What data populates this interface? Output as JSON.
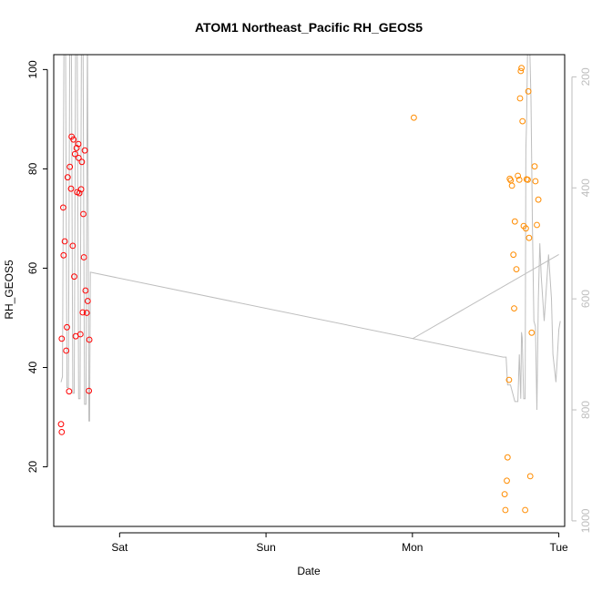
{
  "chart_data": {
    "type": "scatter",
    "title": "ATOM1 Northeast_Pacific RH_GEOS5",
    "xlabel": "Date",
    "ylabel": "RH_GEOS5",
    "x_unit": "days since Fri 00:00",
    "xlim": [
      0.55,
      4.04
    ],
    "ylim": [
      8,
      103
    ],
    "x_ticks": [
      {
        "x": 1,
        "label": "Sat"
      },
      {
        "x": 2,
        "label": "Sun"
      },
      {
        "x": 3,
        "label": "Mon"
      },
      {
        "x": 4,
        "label": "Tue"
      }
    ],
    "y_ticks": [
      20,
      40,
      60,
      80,
      100
    ],
    "right_axis": {
      "label": "",
      "ticks": [
        200,
        400,
        600,
        800,
        1000
      ],
      "lim": [
        1010,
        160
      ],
      "color": "#bebebe"
    },
    "colors": {
      "series1": "#ff0000",
      "series2": "#ff8c00",
      "pressure": "#bebebe",
      "axis": "#000000"
    },
    "series": [
      {
        "color": "#ff0000",
        "points": [
          [
            0.6,
            28.6
          ],
          [
            0.605,
            27.0
          ],
          [
            0.605,
            45.8
          ],
          [
            0.615,
            72.2
          ],
          [
            0.617,
            62.6
          ],
          [
            0.625,
            65.4
          ],
          [
            0.635,
            43.4
          ],
          [
            0.64,
            48.1
          ],
          [
            0.645,
            78.3
          ],
          [
            0.655,
            35.2
          ],
          [
            0.66,
            80.4
          ],
          [
            0.668,
            76.0
          ],
          [
            0.672,
            86.5
          ],
          [
            0.68,
            64.5
          ],
          [
            0.685,
            85.9
          ],
          [
            0.69,
            58.3
          ],
          [
            0.695,
            83.0
          ],
          [
            0.7,
            46.3
          ],
          [
            0.706,
            84.2
          ],
          [
            0.71,
            75.3
          ],
          [
            0.718,
            85.0
          ],
          [
            0.72,
            82.2
          ],
          [
            0.725,
            75.1
          ],
          [
            0.732,
            46.7
          ],
          [
            0.737,
            75.9
          ],
          [
            0.742,
            81.4
          ],
          [
            0.748,
            51.1
          ],
          [
            0.752,
            70.9
          ],
          [
            0.756,
            62.2
          ],
          [
            0.762,
            83.7
          ],
          [
            0.767,
            55.5
          ],
          [
            0.775,
            51.0
          ],
          [
            0.782,
            53.4
          ],
          [
            0.79,
            35.3
          ],
          [
            0.793,
            45.6
          ]
        ]
      },
      {
        "color": "#ff8c00",
        "points": [
          [
            3.01,
            90.3
          ],
          [
            3.63,
            14.5
          ],
          [
            3.635,
            11.3
          ],
          [
            3.645,
            17.2
          ],
          [
            3.65,
            21.9
          ],
          [
            3.66,
            37.5
          ],
          [
            3.665,
            78.0
          ],
          [
            3.672,
            77.7
          ],
          [
            3.68,
            76.6
          ],
          [
            3.69,
            62.7
          ],
          [
            3.695,
            51.9
          ],
          [
            3.7,
            69.4
          ],
          [
            3.71,
            59.8
          ],
          [
            3.72,
            78.6
          ],
          [
            3.73,
            77.8
          ],
          [
            3.735,
            94.2
          ],
          [
            3.74,
            99.7
          ],
          [
            3.745,
            100.3
          ],
          [
            3.752,
            89.6
          ],
          [
            3.76,
            68.5
          ],
          [
            3.77,
            11.3
          ],
          [
            3.775,
            68.0
          ],
          [
            3.78,
            77.9
          ],
          [
            3.788,
            77.8
          ],
          [
            3.792,
            95.6
          ],
          [
            3.797,
            66.1
          ],
          [
            3.805,
            18.1
          ],
          [
            3.815,
            47.0
          ],
          [
            3.835,
            80.5
          ],
          [
            3.84,
            77.5
          ],
          [
            3.85,
            68.7
          ],
          [
            3.86,
            73.8
          ]
        ]
      }
    ],
    "pressure_line": {
      "color": "#bebebe",
      "points": [
        [
          0.6,
          750
        ],
        [
          0.61,
          740
        ],
        [
          0.62,
          100
        ],
        [
          0.63,
          100
        ],
        [
          0.64,
          760
        ],
        [
          0.65,
          760
        ],
        [
          0.66,
          100
        ],
        [
          0.67,
          100
        ],
        [
          0.68,
          770
        ],
        [
          0.69,
          770
        ],
        [
          0.7,
          100
        ],
        [
          0.71,
          100
        ],
        [
          0.72,
          780
        ],
        [
          0.73,
          780
        ],
        [
          0.74,
          100
        ],
        [
          0.75,
          100
        ],
        [
          0.76,
          790
        ],
        [
          0.77,
          790
        ],
        [
          0.78,
          100
        ],
        [
          0.79,
          820
        ],
        [
          0.795,
          820
        ],
        [
          0.8,
          552
        ],
        [
          3.62,
          705
        ],
        [
          3.64,
          705
        ],
        [
          3.65,
          755
        ],
        [
          3.67,
          755
        ],
        [
          3.7,
          785
        ],
        [
          3.72,
          785
        ],
        [
          3.73,
          700
        ],
        [
          3.74,
          780
        ],
        [
          3.745,
          660
        ],
        [
          3.75,
          670
        ],
        [
          3.76,
          780
        ],
        [
          3.77,
          780
        ],
        [
          3.775,
          330
        ],
        [
          3.78,
          280
        ],
        [
          3.785,
          180
        ],
        [
          3.79,
          100
        ],
        [
          3.8,
          130
        ],
        [
          3.81,
          240
        ],
        [
          3.82,
          470
        ],
        [
          3.83,
          640
        ],
        [
          3.84,
          650
        ],
        [
          3.85,
          800
        ],
        [
          3.86,
          600
        ],
        [
          3.87,
          500
        ],
        [
          3.88,
          560
        ],
        [
          3.89,
          600
        ],
        [
          3.9,
          640
        ],
        [
          3.91,
          600
        ],
        [
          3.93,
          520
        ],
        [
          3.95,
          600
        ],
        [
          3.96,
          700
        ],
        [
          3.98,
          750
        ],
        [
          4.0,
          655
        ],
        [
          4.01,
          640
        ]
      ],
      "extra_segments": [
        [
          [
            3.0,
            672
          ],
          [
            4.0,
            520
          ]
        ]
      ]
    }
  }
}
